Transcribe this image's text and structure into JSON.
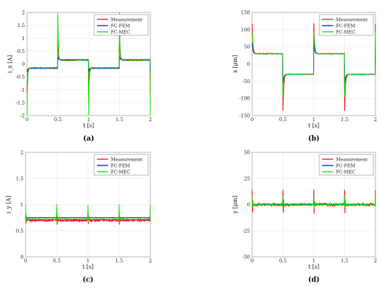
{
  "chart_data": [
    {
      "type": "line",
      "panel_label": "(a)",
      "xlabel": "t [s]",
      "ylabel": "i_x [A]",
      "xlim": [
        0,
        2
      ],
      "ylim": [
        -2,
        2
      ],
      "xticks": [
        0,
        0.5,
        1,
        1.5,
        2
      ],
      "yticks": [
        -2,
        -1.5,
        -1,
        -0.5,
        0,
        0.5,
        1,
        1.5,
        2
      ],
      "grid": true,
      "legend_position": "top-right",
      "series": [
        {
          "name": "Measurement",
          "color": "#ff0000",
          "base": 0.15,
          "spike_up": 1.35,
          "spike_down": -1.1,
          "noise": 0.02
        },
        {
          "name": "FC-FEM",
          "color": "#0000ff",
          "base": 0.17,
          "spike_up": 0.3,
          "spike_down": -0.3,
          "noise": 0.0
        },
        {
          "name": "FC-MEC",
          "color": "#00dd00",
          "base": 0.15,
          "spike_up": 2.0,
          "spike_down": -2.0,
          "noise": 0.01
        }
      ]
    },
    {
      "type": "line",
      "panel_label": "(b)",
      "xlabel": "t [s]",
      "ylabel": "x [μm]",
      "xlim": [
        0,
        2
      ],
      "ylim": [
        -150,
        150
      ],
      "xticks": [
        0,
        0.5,
        1,
        1.5,
        2
      ],
      "yticks": [
        -150,
        -100,
        -50,
        0,
        50,
        100,
        150
      ],
      "grid": true,
      "legend_position": "top-right",
      "series": [
        {
          "name": "Measurement",
          "color": "#ff0000",
          "base": 30,
          "overshoot": 118,
          "undershoot": -135,
          "noise": 0.5
        },
        {
          "name": "FC-FEM",
          "color": "#0000ff",
          "base": 30,
          "overshoot": 60,
          "undershoot": -60,
          "noise": 0.0
        },
        {
          "name": "FC-MEC",
          "color": "#00dd00",
          "base": 30,
          "overshoot": 95,
          "undershoot": -95,
          "noise": 0.3
        }
      ]
    },
    {
      "type": "line",
      "panel_label": "(c)",
      "xlabel": "t [s]",
      "ylabel": "i_y [A]",
      "xlim": [
        0,
        2
      ],
      "ylim": [
        0,
        2
      ],
      "xticks": [
        0,
        0.5,
        1,
        1.5,
        2
      ],
      "yticks": [
        0,
        0.5,
        1,
        1.5,
        2
      ],
      "grid": true,
      "legend_position": "top-right",
      "series": [
        {
          "name": "Measurement",
          "color": "#ff0000",
          "base": 0.7,
          "spike_up": 0.85,
          "spike_down": 0.58,
          "noise": 0.02
        },
        {
          "name": "FC-FEM",
          "color": "#0000ff",
          "base": 0.75,
          "spike_up": 0.75,
          "spike_down": 0.75,
          "noise": 0.0
        },
        {
          "name": "FC-MEC",
          "color": "#00dd00",
          "base": 0.72,
          "spike_up": 1.0,
          "spike_down": 0.62,
          "noise": 0.01
        }
      ]
    },
    {
      "type": "line",
      "panel_label": "(d)",
      "xlabel": "t [s]",
      "ylabel": "y [μm]",
      "xlim": [
        0,
        2
      ],
      "ylim": [
        -50,
        50
      ],
      "xticks": [
        0,
        0.5,
        1,
        1.5,
        2
      ],
      "yticks": [
        -50,
        -25,
        0,
        25,
        50
      ],
      "grid": true,
      "legend_position": "top-right",
      "series": [
        {
          "name": "Measurement",
          "color": "#ff0000",
          "base": 0,
          "spike_up": 15,
          "spike_down": -15,
          "noise": 1.2
        },
        {
          "name": "FC-FEM",
          "color": "#0000ff",
          "base": 0,
          "spike_up": 2,
          "spike_down": -2,
          "noise": 0.0
        },
        {
          "name": "FC-MEC",
          "color": "#00dd00",
          "base": 0,
          "spike_up": 8,
          "spike_down": -6,
          "noise": 0.6
        }
      ]
    }
  ]
}
